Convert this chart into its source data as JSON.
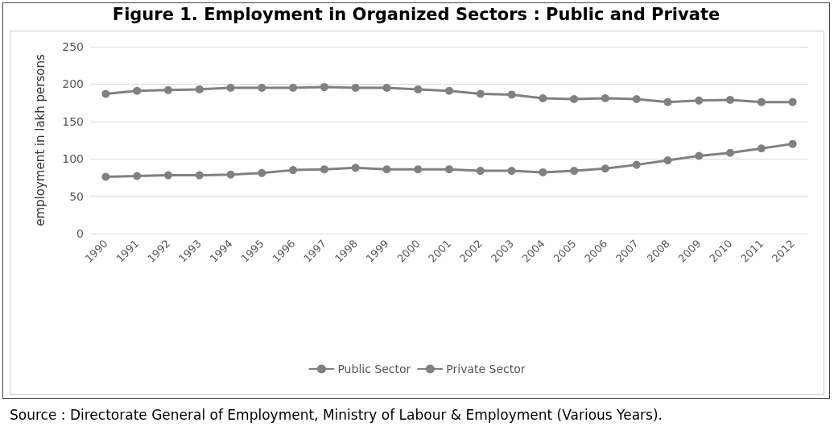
{
  "chart_data": {
    "type": "line",
    "title": "Figure 1. Employment in Organized Sectors : Public and Private",
    "ylabel": "employment in lakh persons",
    "categories": [
      "1990",
      "1991",
      "1992",
      "1993",
      "1994",
      "1995",
      "1996",
      "1997",
      "1998",
      "1999",
      "2000",
      "2001",
      "2002",
      "2003",
      "2004",
      "2005",
      "2006",
      "2007",
      "2008",
      "2009",
      "2010",
      "2011",
      "2012"
    ],
    "series": [
      {
        "name": "Public Sector",
        "color": "#808080",
        "values": [
          187,
          191,
          192,
          193,
          195,
          195,
          195,
          196,
          195,
          195,
          193,
          191,
          187,
          186,
          181,
          180,
          181,
          180,
          176,
          178,
          179,
          176,
          176
        ]
      },
      {
        "name": "Private Sector",
        "color": "#808080",
        "values": [
          76,
          77,
          78,
          78,
          79,
          81,
          85,
          86,
          88,
          86,
          86,
          86,
          84,
          84,
          82,
          84,
          87,
          92,
          98,
          104,
          108,
          114,
          120
        ]
      }
    ],
    "ylim": [
      0,
      250
    ],
    "yticks": [
      0,
      50,
      100,
      150,
      200,
      250
    ],
    "grid": "y",
    "legend": "bottom",
    "marker": "circle",
    "line_style": "solid",
    "annotations": [
      "Source : Directorate General of Employment, Ministry of Labour & Employment (Various Years)."
    ]
  }
}
